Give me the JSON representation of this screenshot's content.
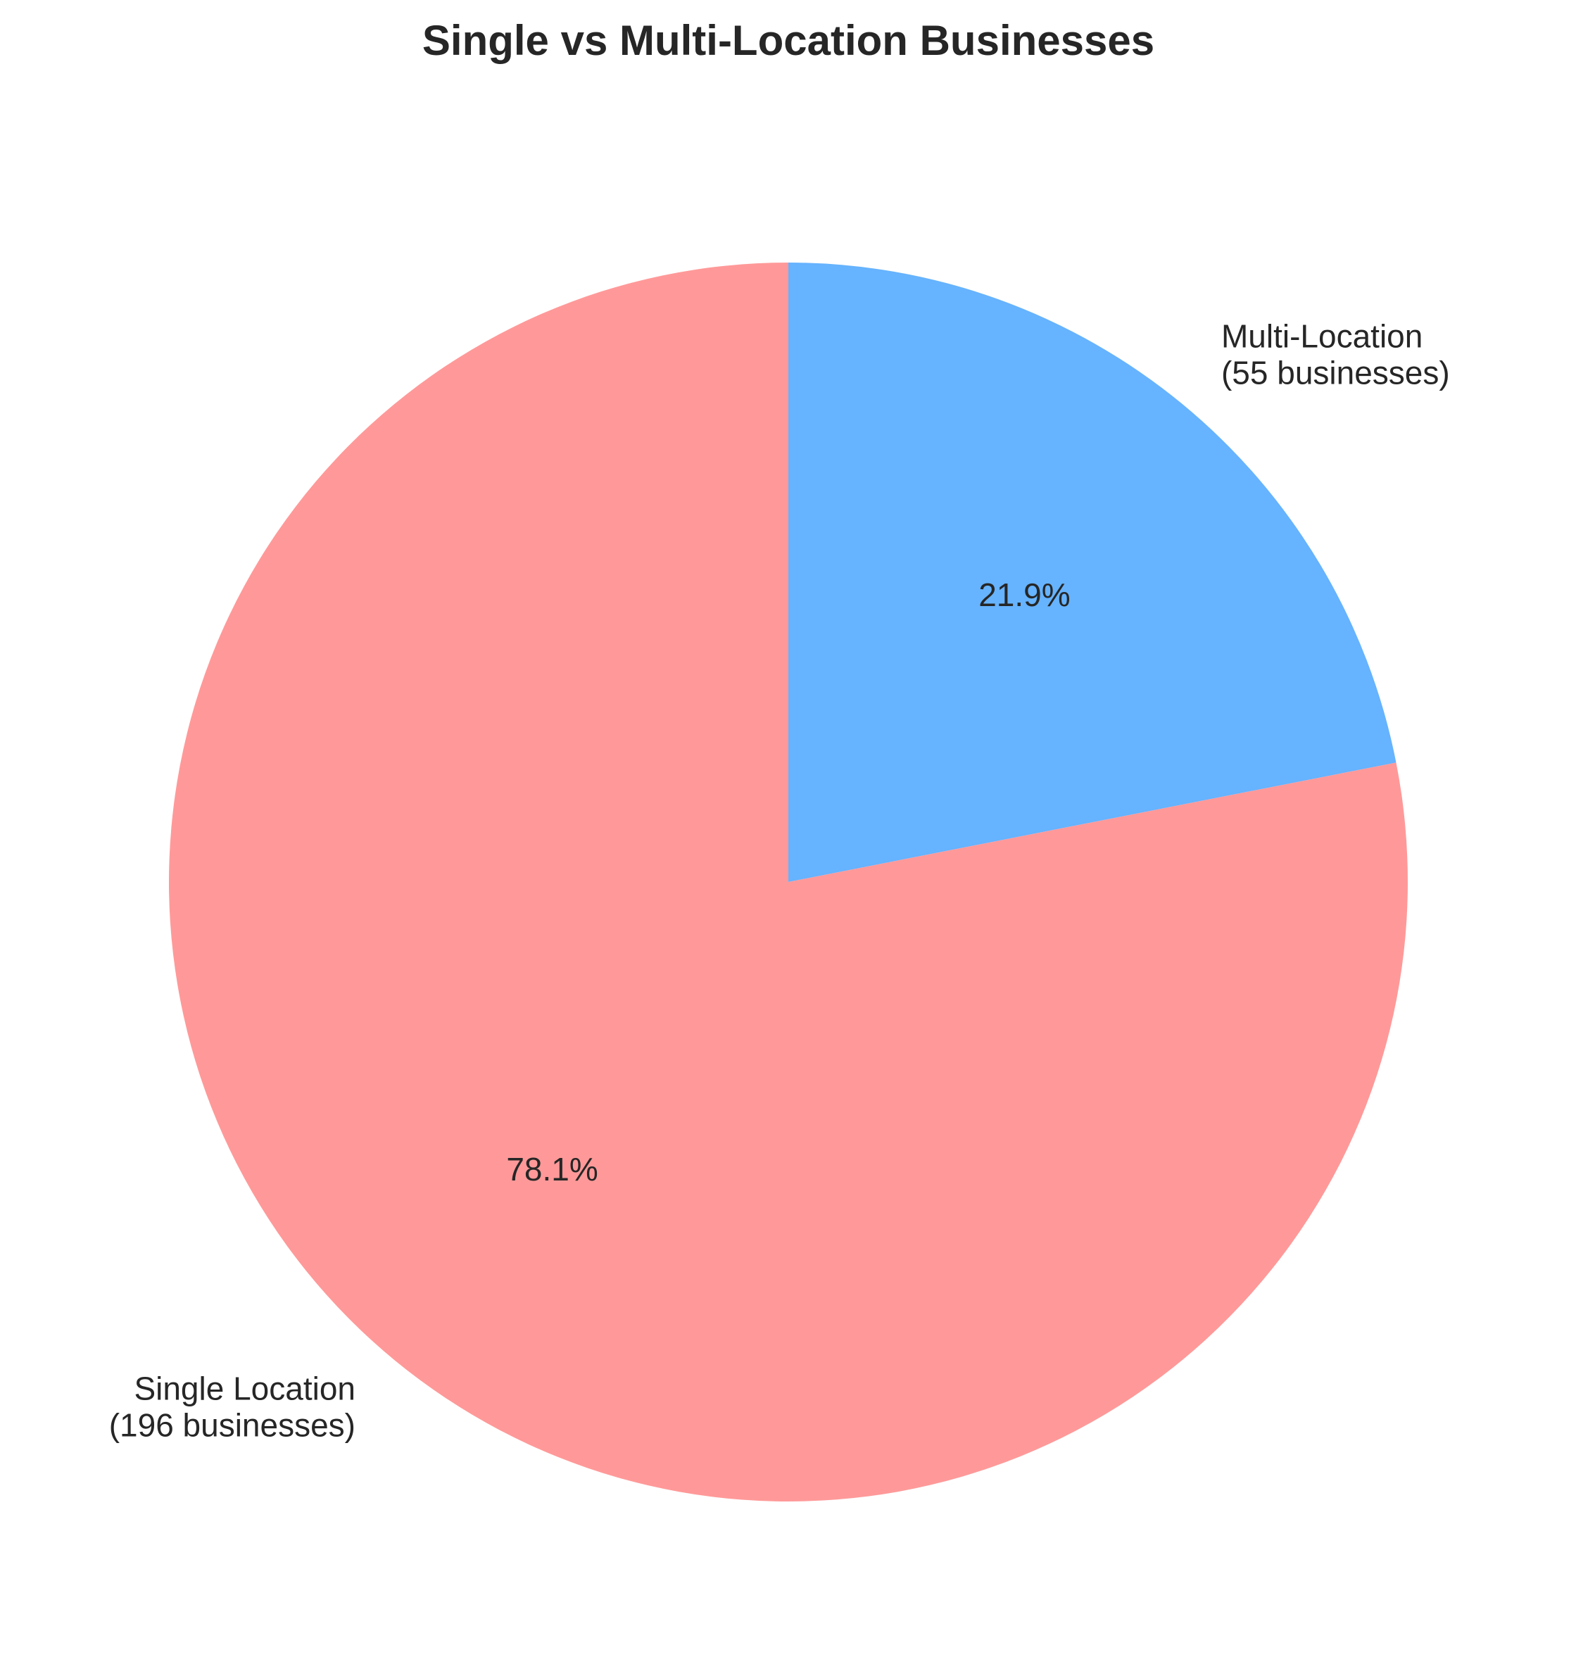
{
  "chart_data": {
    "type": "pie",
    "title": "Single vs Multi-Location Businesses",
    "start_angle_deg": 90,
    "direction": "clockwise",
    "slices": [
      {
        "category": "Multi-Location",
        "count_label": "(55 businesses)",
        "value": 55,
        "percent_label": "21.9%",
        "color": "#66b3ff"
      },
      {
        "category": "Single Location",
        "count_label": "(196 businesses)",
        "value": 196,
        "percent_label": "78.1%",
        "color": "#ff9999"
      }
    ]
  }
}
